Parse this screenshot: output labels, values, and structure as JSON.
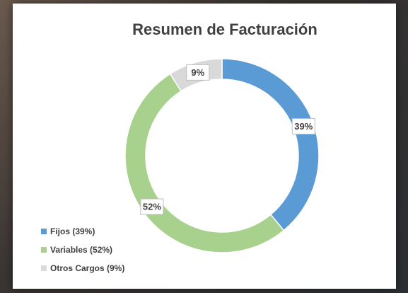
{
  "chart_data": {
    "type": "pie",
    "donut": true,
    "title": "Resumen de Facturación",
    "categories": [
      "Fijos (39%)",
      "Variables (52%)",
      "Otros Cargos (9%)"
    ],
    "values": [
      39,
      52,
      9
    ],
    "value_labels": [
      "39%",
      "52%",
      "9%"
    ],
    "colors": [
      "#5b9bd5",
      "#a9d18e",
      "#d9d9d9"
    ],
    "legend": "bottom-left"
  }
}
